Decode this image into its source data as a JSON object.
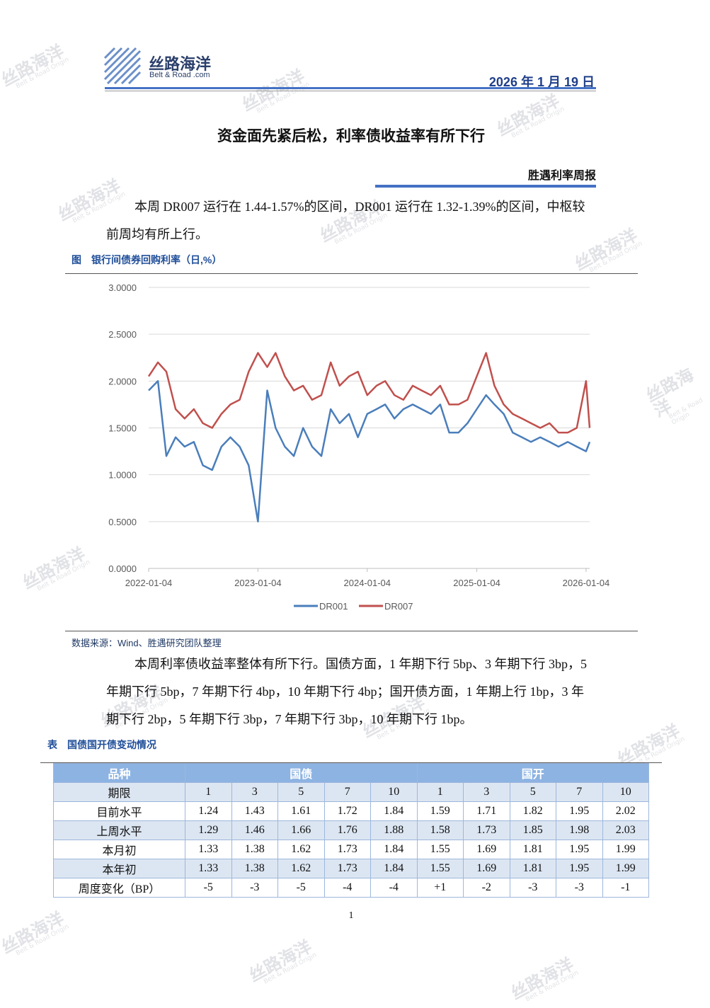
{
  "header": {
    "logo_name": "丝路海洋",
    "logo_sub": "Belt & Road .com",
    "date": "2026 年 1 月 19 日"
  },
  "title": "资金面先紧后松，利率债收益率有所下行",
  "report_name": "胜遇利率周报",
  "paragraphs": [
    "本周 DR007 运行在 1.44-1.57%的区间，DR001 运行在 1.32-1.39%的区间，中枢较前周均有所上行。",
    "本周利率债收益率整体有所下行。国债方面，1 年期下行 5bp、3 年期下行 3bp，5 年期下行 5bp，7 年期下行 4bp，10 年期下行 4bp；国开债方面，1 年期上行 1bp，3 年期下行 2bp，5 年期下行 3bp，7 年期下行 3bp，10 年期下行 1bp。"
  ],
  "figure_caption": "图　银行间债券回购利率（日,%）",
  "chart_data": {
    "type": "line",
    "x": [
      "2022-01-04",
      "2022-02-04",
      "2022-03-04",
      "2022-04-04",
      "2022-05-04",
      "2022-06-04",
      "2022-07-04",
      "2022-08-04",
      "2022-09-04",
      "2022-10-04",
      "2022-11-04",
      "2022-12-04",
      "2023-01-04",
      "2023-02-04",
      "2023-03-04",
      "2023-04-04",
      "2023-05-04",
      "2023-06-04",
      "2023-07-04",
      "2023-08-04",
      "2023-09-04",
      "2023-10-04",
      "2023-11-04",
      "2023-12-04",
      "2024-01-04",
      "2024-02-04",
      "2024-03-04",
      "2024-04-04",
      "2024-05-04",
      "2024-06-04",
      "2024-07-04",
      "2024-08-04",
      "2024-09-04",
      "2024-10-04",
      "2024-11-04",
      "2024-12-04",
      "2025-01-04",
      "2025-02-04",
      "2025-03-04",
      "2025-04-04",
      "2025-05-04",
      "2025-06-04",
      "2025-07-04",
      "2025-08-04",
      "2025-09-04",
      "2025-10-04",
      "2025-11-04",
      "2025-12-04",
      "2026-01-04",
      "2026-01-16"
    ],
    "series": [
      {
        "name": "DR001",
        "color": "#4a7ebb",
        "values": [
          1.9,
          2.0,
          1.2,
          1.4,
          1.3,
          1.35,
          1.1,
          1.05,
          1.3,
          1.4,
          1.3,
          1.1,
          0.5,
          1.9,
          1.5,
          1.3,
          1.2,
          1.5,
          1.3,
          1.2,
          1.7,
          1.55,
          1.65,
          1.4,
          1.65,
          1.7,
          1.75,
          1.6,
          1.7,
          1.75,
          1.7,
          1.65,
          1.75,
          1.45,
          1.45,
          1.55,
          1.7,
          1.85,
          1.75,
          1.65,
          1.45,
          1.4,
          1.35,
          1.4,
          1.35,
          1.3,
          1.35,
          1.3,
          1.25,
          1.35
        ]
      },
      {
        "name": "DR007",
        "color": "#c0504d",
        "values": [
          2.05,
          2.2,
          2.1,
          1.7,
          1.6,
          1.7,
          1.55,
          1.5,
          1.65,
          1.75,
          1.8,
          2.1,
          2.3,
          2.15,
          2.3,
          2.05,
          1.9,
          1.95,
          1.8,
          1.85,
          2.2,
          1.95,
          2.05,
          2.1,
          1.85,
          1.95,
          2.0,
          1.85,
          1.8,
          1.95,
          1.9,
          1.85,
          1.95,
          1.75,
          1.75,
          1.8,
          2.05,
          2.3,
          1.95,
          1.75,
          1.65,
          1.6,
          1.55,
          1.5,
          1.55,
          1.45,
          1.45,
          1.5,
          2.0,
          1.5
        ]
      }
    ],
    "xlim": [
      "2022-01-04",
      "2026-01-16"
    ],
    "xticks": [
      "2022-01-04",
      "2023-01-04",
      "2024-01-04",
      "2025-01-04",
      "2026-01-04"
    ],
    "ylim": [
      0,
      3
    ],
    "yticks": [
      {
        "value": 0,
        "label": "0.0000"
      },
      {
        "value": 0.5,
        "label": "0.5000"
      },
      {
        "value": 1,
        "label": "1.0000"
      },
      {
        "value": 1.5,
        "label": "1.5000"
      },
      {
        "value": 2,
        "label": "2.0000"
      },
      {
        "value": 2.5,
        "label": "2.5000"
      },
      {
        "value": 3,
        "label": "3.0000"
      }
    ],
    "grid": true,
    "legend": "bottom"
  },
  "source": "数据来源：Wind、胜遇研究团队整理",
  "table_caption": "表　国债国开债变动情况",
  "table": {
    "header": [
      "品种",
      "国债",
      "国开"
    ],
    "subheader": [
      "期限",
      "1",
      "3",
      "5",
      "7",
      "10",
      "1",
      "3",
      "5",
      "7",
      "10"
    ],
    "rows": [
      [
        "目前水平",
        "1.24",
        "1.43",
        "1.61",
        "1.72",
        "1.84",
        "1.59",
        "1.71",
        "1.82",
        "1.95",
        "2.02"
      ],
      [
        "上周水平",
        "1.29",
        "1.46",
        "1.66",
        "1.76",
        "1.88",
        "1.58",
        "1.73",
        "1.85",
        "1.98",
        "2.03"
      ],
      [
        "本月初",
        "1.33",
        "1.38",
        "1.62",
        "1.73",
        "1.84",
        "1.55",
        "1.69",
        "1.81",
        "1.95",
        "1.99"
      ],
      [
        "本年初",
        "1.33",
        "1.38",
        "1.62",
        "1.73",
        "1.84",
        "1.55",
        "1.69",
        "1.81",
        "1.95",
        "1.99"
      ],
      [
        "周度变化（BP）",
        "-5",
        "-3",
        "-5",
        "-4",
        "-4",
        "+1",
        "-2",
        "-3",
        "-3",
        "-1"
      ]
    ]
  },
  "page_number": "1",
  "watermark": {
    "text": "丝路海洋",
    "sub": "Belt & Road Origin"
  }
}
